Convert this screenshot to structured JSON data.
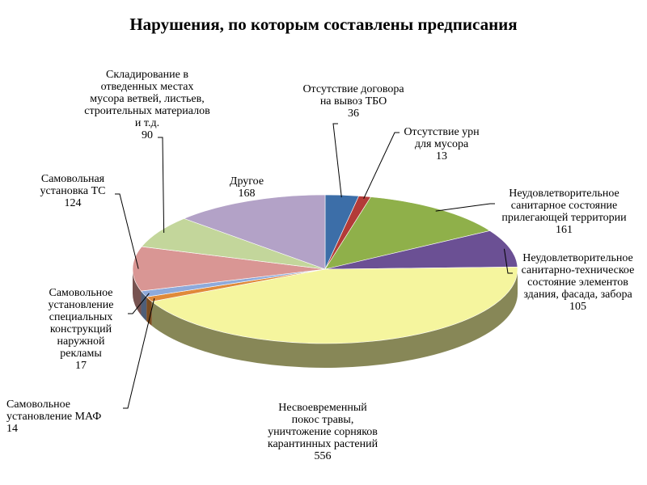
{
  "chart_data": {
    "type": "pie",
    "title": "Нарушения, по которым составлены предписания",
    "slices": [
      {
        "label": "Отсутствие договора на вывоз ТБО",
        "label_lines": [
          "Отсутствие договора",
          "на вывоз ТБО"
        ],
        "value": 36,
        "color": "#3c6ea8"
      },
      {
        "label": "Отсутствие урн для мусора",
        "label_lines": [
          "Отсутствие урн",
          "для мусора"
        ],
        "value": 13,
        "color": "#b33b38"
      },
      {
        "label": "Неудовлетворительное санитарное состояние прилегающей территории",
        "label_lines": [
          "Неудовлетворительное",
          "санитарное состояние",
          "прилегающей территории"
        ],
        "value": 161,
        "color": "#8fb04a"
      },
      {
        "label": "Неудовлетворительное санитарно-техническое состояние элементов здания, фасада, забора",
        "label_lines": [
          "Неудовлетворительное",
          "санитарно-техническое",
          "состояние элементов",
          "здания, фасада, забора"
        ],
        "value": 105,
        "color": "#6b5094"
      },
      {
        "label": "Несвоевременный покос травы, уничтожение сорняков карантинных растений",
        "label_lines": [
          "Несвоевременный",
          "покос травы,",
          "уничтожение сорняков",
          "карантинных растений"
        ],
        "value": 556,
        "color": "#f5f59e"
      },
      {
        "label": "Самовольное установление МАФ",
        "label_lines": [
          "Самовольное",
          "установление МАФ"
        ],
        "value": 14,
        "color": "#e08a3a"
      },
      {
        "label": "Самовольное установление специальных конструкций наружной рекламы",
        "label_lines": [
          "Самовольное",
          "установление",
          "специальных",
          "конструкций",
          "наружной",
          "рекламы"
        ],
        "value": 17,
        "color": "#8eaadb"
      },
      {
        "label": "Самовольная установка ТС",
        "label_lines": [
          "Самовольная",
          "установка ТС"
        ],
        "value": 124,
        "color": "#d99694"
      },
      {
        "label": "Складирование в отведенных местах мусора ветвей, листьев, строительных материалов и т.д.",
        "label_lines": [
          "Складирование в",
          "отведенных местах",
          "мусора ветвей, листьев,",
          "строительных материалов",
          "и т.д."
        ],
        "value": 90,
        "color": "#c3d69b"
      },
      {
        "label": "Другое",
        "label_lines": [
          "Другое"
        ],
        "value": 168,
        "color": "#b3a2c7"
      }
    ]
  }
}
